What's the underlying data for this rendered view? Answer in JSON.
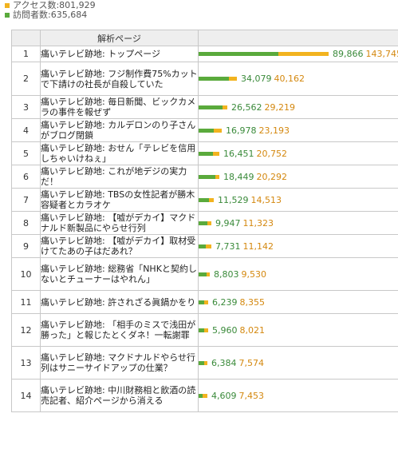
{
  "colors": {
    "access": "#f2b31f",
    "visit": "#5aaa3c"
  },
  "legend": {
    "access_label": "アクセス数:",
    "access_value": "801,929",
    "visit_label": "訪問者数:",
    "visit_value": "635,684"
  },
  "table": {
    "header": "解析ページ"
  },
  "bar_scale_max": 143745,
  "rows": [
    {
      "rank": "1",
      "page": "痛いテレビ跡地: トップページ",
      "visits": 89866,
      "accesses": 143745,
      "visits_text": "89,866",
      "accesses_text": "143,745"
    },
    {
      "rank": "2",
      "page": "痛いテレビ跡地: フジ制作費75%カットで下請けの社長が自殺していた",
      "visits": 34079,
      "accesses": 40162,
      "visits_text": "34,079",
      "accesses_text": "40,162"
    },
    {
      "rank": "3",
      "page": "痛いテレビ跡地: 毎日新聞、ビックカメラの事件を報ぜず",
      "visits": 26562,
      "accesses": 29219,
      "visits_text": "26,562",
      "accesses_text": "29,219"
    },
    {
      "rank": "4",
      "page": "痛いテレビ跡地: カルデロンのり子さんがブログ閉鎖",
      "visits": 16978,
      "accesses": 23193,
      "visits_text": "16,978",
      "accesses_text": "23,193"
    },
    {
      "rank": "5",
      "page": "痛いテレビ跡地: おせん「テレビを信用しちゃいけねぇ」",
      "visits": 16451,
      "accesses": 20752,
      "visits_text": "16,451",
      "accesses_text": "20,752"
    },
    {
      "rank": "6",
      "page": "痛いテレビ跡地: これが地デジの実力だ！",
      "visits": 18449,
      "accesses": 20292,
      "visits_text": "18,449",
      "accesses_text": "20,292"
    },
    {
      "rank": "7",
      "page": "痛いテレビ跡地: TBSの女性記者が勝木容疑者とカラオケ",
      "visits": 11529,
      "accesses": 14513,
      "visits_text": "11,529",
      "accesses_text": "14,513"
    },
    {
      "rank": "8",
      "page": "痛いテレビ跡地: 【嘘がデカイ】マクドナルド新製品にやらせ行列",
      "visits": 9947,
      "accesses": 11323,
      "visits_text": "9,947",
      "accesses_text": "11,323"
    },
    {
      "rank": "9",
      "page": "痛いテレビ跡地: 【嘘がデカイ】取材受けてたあの子はだあれ？",
      "visits": 7731,
      "accesses": 11142,
      "visits_text": "7,731",
      "accesses_text": "11,142"
    },
    {
      "rank": "10",
      "page": "痛いテレビ跡地: 総務省「NHKと契約しないとチューナーはやれん」",
      "visits": 8803,
      "accesses": 9530,
      "visits_text": "8,803",
      "accesses_text": "9,530"
    },
    {
      "rank": "11",
      "page": "痛いテレビ跡地: 許されざる眞鍋かをり",
      "visits": 6239,
      "accesses": 8355,
      "visits_text": "6,239",
      "accesses_text": "8,355"
    },
    {
      "rank": "12",
      "page": "痛いテレビ跡地: 「相手のミスで浅田が勝った」と報じたとくダネ！一転謝罪",
      "visits": 5960,
      "accesses": 8021,
      "visits_text": "5,960",
      "accesses_text": "8,021"
    },
    {
      "rank": "13",
      "page": "痛いテレビ跡地: マクドナルドやらせ行列はサニーサイドアップの仕業？",
      "visits": 6384,
      "accesses": 7574,
      "visits_text": "6,384",
      "accesses_text": "7,574"
    },
    {
      "rank": "14",
      "page": "痛いテレビ跡地: 中川財務相と飲酒の読売記者、紹介ページから消える",
      "visits": 4609,
      "accesses": 7453,
      "visits_text": "4,609",
      "accesses_text": "7,453"
    }
  ]
}
